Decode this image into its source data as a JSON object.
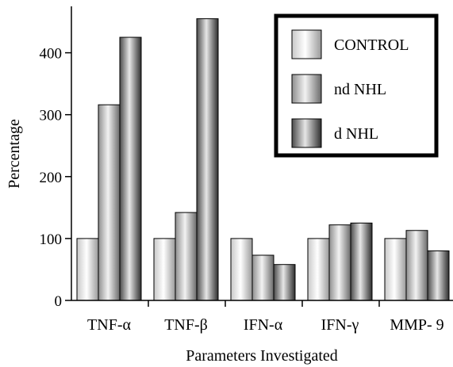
{
  "chart_data": {
    "type": "bar",
    "title": "",
    "xlabel": "Parameters Investigated",
    "ylabel": "Percentage",
    "ylim": [
      0,
      475
    ],
    "yticks": [
      0,
      100,
      200,
      300,
      400
    ],
    "categories": [
      "TNF-α",
      "TNF-β",
      "IFN-α",
      "IFN-γ",
      "MMP- 9"
    ],
    "series": [
      {
        "name": "CONTROL",
        "values": [
          100,
          100,
          100,
          100,
          100
        ],
        "shade": "light"
      },
      {
        "name": "nd NHL",
        "values": [
          316,
          142,
          73,
          122,
          113
        ],
        "shade": "medium"
      },
      {
        "name": "d NHL",
        "values": [
          425,
          455,
          58,
          125,
          80
        ],
        "shade": "dark"
      }
    ],
    "legend_position": "top-right",
    "grid": false
  }
}
